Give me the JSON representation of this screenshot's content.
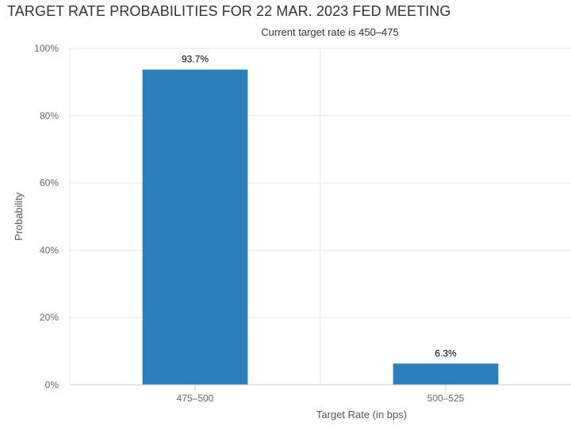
{
  "chart_data": {
    "type": "bar",
    "title": "TARGET RATE PROBABILITIES FOR 22 MAR. 2023 FED MEETING",
    "subtitle": "Current target rate is 450–475",
    "xlabel": "Target Rate (in bps)",
    "ylabel": "Probability",
    "categories": [
      "475–500",
      "500–525"
    ],
    "values": [
      93.7,
      6.3
    ],
    "data_labels": [
      "93.7%",
      "6.3%"
    ],
    "ylim": [
      0,
      100
    ],
    "yticks": [
      0,
      20,
      40,
      60,
      80,
      100
    ],
    "ytick_labels": [
      "0%",
      "20%",
      "40%",
      "60%",
      "80%",
      "100%"
    ],
    "bar_color": "#2a7fba",
    "grid": true,
    "legend": "none"
  }
}
